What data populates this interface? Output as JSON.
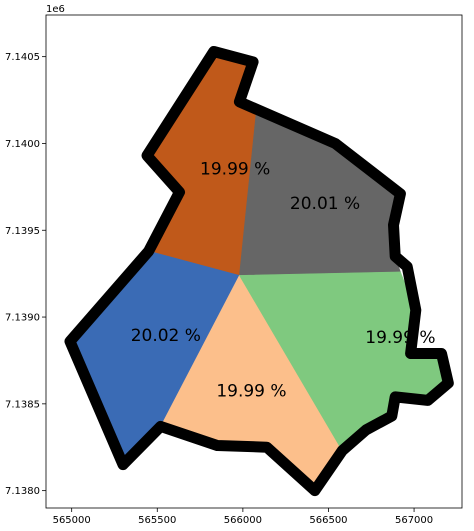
{
  "chart_data": {
    "type": "map",
    "title": "",
    "xlabel": "",
    "ylabel": "",
    "y_offset_label": "1e6",
    "xlim": [
      564850,
      567280
    ],
    "ylim": [
      7137900,
      7140740
    ],
    "x_ticks": [
      565000,
      565500,
      566000,
      566500,
      567000
    ],
    "x_tick_labels": [
      "565000",
      "565500",
      "566000",
      "566500",
      "567000"
    ],
    "y_ticks": [
      7138000,
      7138500,
      7139000,
      7139500,
      7140000,
      7140500
    ],
    "y_tick_labels": [
      "7.1380",
      "7.1385",
      "7.1390",
      "7.1395",
      "7.1400",
      "7.1405"
    ],
    "outline_color": "#000000",
    "regions": [
      {
        "label": "19.99 %",
        "color": "#c0591a",
        "label_pos": [
          565955,
          7139850
        ],
        "polygon": [
          [
            565830,
            7140530
          ],
          [
            566060,
            7140470
          ],
          [
            565980,
            7140240
          ],
          [
            566080,
            7140200
          ],
          [
            565980,
            7139240
          ],
          [
            565450,
            7139380
          ],
          [
            565630,
            7139720
          ],
          [
            565440,
            7139930
          ]
        ]
      },
      {
        "label": "20.01 %",
        "color": "#666666",
        "label_pos": [
          566480,
          7139650
        ],
        "polygon": [
          [
            566080,
            7140200
          ],
          [
            566540,
            7140000
          ],
          [
            566920,
            7139710
          ],
          [
            566880,
            7139530
          ],
          [
            566890,
            7139350
          ],
          [
            566920,
            7139260
          ],
          [
            565980,
            7139240
          ]
        ]
      },
      {
        "label": "20.02 %",
        "color": "#3a6bb5",
        "label_pos": [
          565550,
          7138890
        ],
        "polygon": [
          [
            565450,
            7139380
          ],
          [
            564990,
            7138860
          ],
          [
            565300,
            7138150
          ],
          [
            565520,
            7138370
          ],
          [
            565980,
            7139240
          ]
        ]
      },
      {
        "label": "19.99 %",
        "color": "#fcbf8b",
        "label_pos": [
          566050,
          7138570
        ],
        "polygon": [
          [
            565980,
            7139240
          ],
          [
            565520,
            7138370
          ],
          [
            565850,
            7138260
          ],
          [
            566140,
            7138250
          ],
          [
            566420,
            7138000
          ],
          [
            566580,
            7138230
          ]
        ]
      },
      {
        "label": "19.99 %",
        "color": "#7fc97f",
        "label_pos": [
          566920,
          7138880
        ],
        "polygon": [
          [
            565980,
            7139240
          ],
          [
            566920,
            7139260
          ],
          [
            567010,
            7139040
          ],
          [
            566980,
            7138790
          ],
          [
            567160,
            7138790
          ],
          [
            567200,
            7138620
          ],
          [
            567080,
            7138520
          ],
          [
            566890,
            7138540
          ],
          [
            566870,
            7138430
          ],
          [
            566720,
            7138350
          ],
          [
            566580,
            7138230
          ]
        ]
      }
    ],
    "outline": [
      [
        565830,
        7140530
      ],
      [
        566060,
        7140470
      ],
      [
        565980,
        7140240
      ],
      [
        566540,
        7140000
      ],
      [
        566920,
        7139710
      ],
      [
        566880,
        7139530
      ],
      [
        566890,
        7139350
      ],
      [
        566960,
        7139290
      ],
      [
        567010,
        7139040
      ],
      [
        566980,
        7138790
      ],
      [
        567160,
        7138790
      ],
      [
        567200,
        7138620
      ],
      [
        567080,
        7138520
      ],
      [
        566890,
        7138540
      ],
      [
        566870,
        7138430
      ],
      [
        566720,
        7138350
      ],
      [
        566580,
        7138230
      ],
      [
        566420,
        7138000
      ],
      [
        566140,
        7138250
      ],
      [
        565850,
        7138260
      ],
      [
        565520,
        7138370
      ],
      [
        565300,
        7138150
      ],
      [
        564990,
        7138860
      ],
      [
        565450,
        7139380
      ],
      [
        565630,
        7139720
      ],
      [
        565440,
        7139930
      ]
    ]
  }
}
